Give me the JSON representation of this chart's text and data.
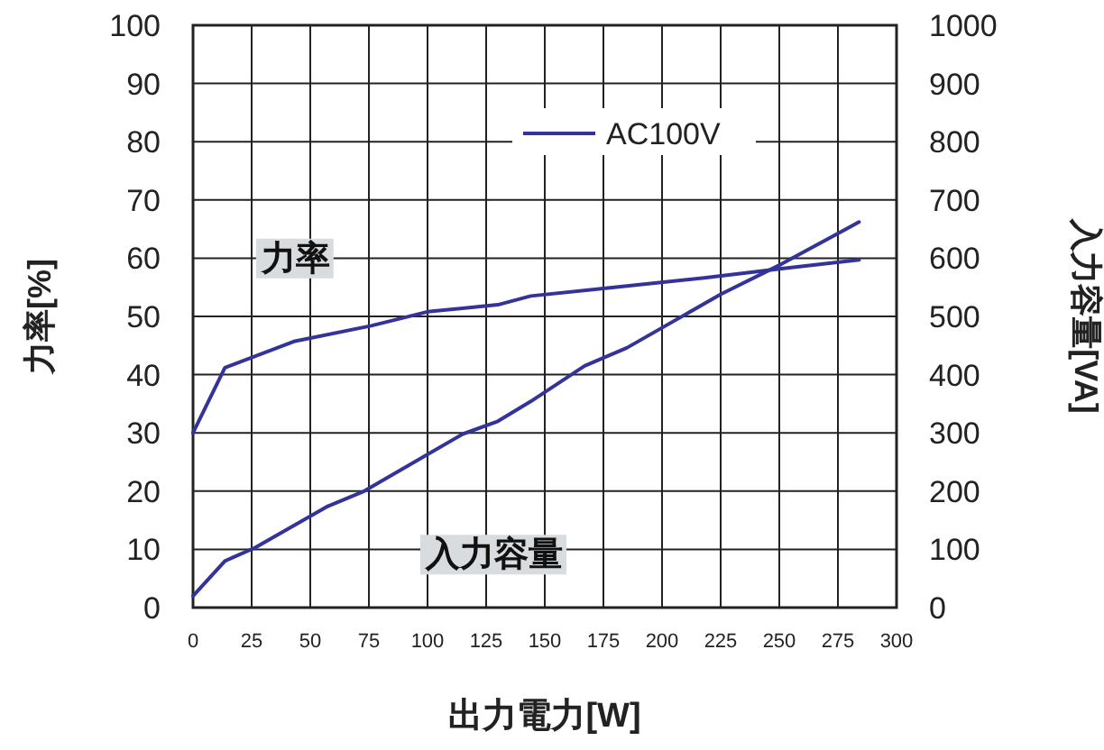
{
  "chart_data": {
    "type": "line",
    "xlabel": "出力電力[W]",
    "ylabel": "力率[%]",
    "y2label": "入力容量[VA]",
    "legend_title": "AC100V",
    "grid": true,
    "marker": "none",
    "line_style": "solid",
    "xlim": [
      0,
      300
    ],
    "xticks": [
      0,
      25,
      50,
      75,
      100,
      125,
      150,
      175,
      200,
      225,
      250,
      275,
      300
    ],
    "ylim": [
      0,
      100
    ],
    "yticks": [
      0,
      10,
      20,
      30,
      40,
      50,
      60,
      70,
      80,
      90,
      100
    ],
    "y2lim": [
      0,
      1000
    ],
    "y2ticks": [
      0,
      100,
      200,
      300,
      400,
      500,
      600,
      700,
      800,
      900,
      1000
    ],
    "series": [
      {
        "name": "力率",
        "color": "#33339a",
        "x": [
          0,
          13.6,
          43,
          76,
          100,
          130,
          144,
          175,
          218,
          251,
          284
        ],
        "values": [
          30,
          41.2,
          45.7,
          48.4,
          50.8,
          52,
          53.5,
          54.8,
          56.6,
          58.2,
          59.7
        ]
      },
      {
        "name": "入力容量",
        "color": "#33339a",
        "axis": "y2",
        "x": [
          0,
          13.6,
          26.5,
          57.5,
          73,
          115,
          130,
          144,
          167,
          185,
          225,
          251,
          284
        ],
        "values": [
          20,
          80,
          103,
          174,
          200,
          298,
          320,
          354,
          415,
          446,
          538,
          590,
          662
        ]
      }
    ]
  }
}
